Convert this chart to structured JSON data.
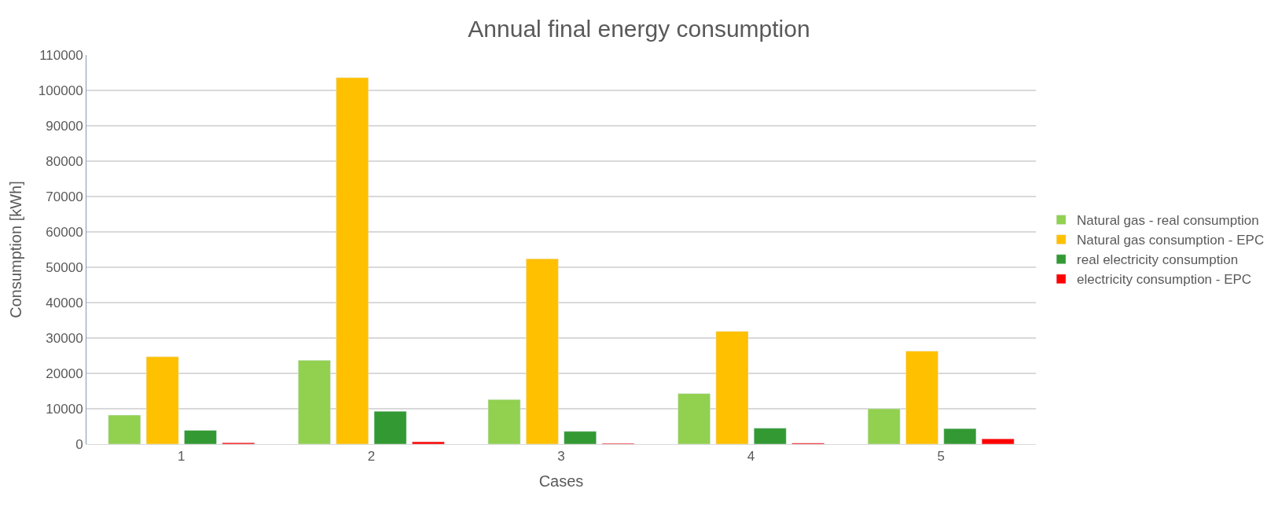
{
  "chart_data": {
    "type": "bar",
    "title": "Annual final energy consumption",
    "xlabel": "Cases",
    "ylabel": "Consumption [kWh]",
    "categories": [
      "1",
      "2",
      "3",
      "4",
      "5"
    ],
    "series": [
      {
        "name": "Natural gas - real consumption",
        "color": "#92d050",
        "values": [
          8200,
          23700,
          12600,
          14300,
          10000
        ]
      },
      {
        "name": "Natural gas consumption - EPC",
        "color": "#ffc000",
        "values": [
          24700,
          103600,
          52400,
          31900,
          26300
        ]
      },
      {
        "name": "real electricity consumption",
        "color": "#339933",
        "values": [
          3900,
          9300,
          3600,
          4500,
          4400
        ]
      },
      {
        "name": "electricity consumption - EPC",
        "color": "#ff0000",
        "values": [
          400,
          650,
          200,
          300,
          1500
        ]
      }
    ],
    "ylim": [
      0,
      110000
    ],
    "yticks": [
      0,
      10000,
      20000,
      30000,
      40000,
      50000,
      60000,
      70000,
      80000,
      90000,
      100000,
      110000
    ],
    "grid": "y",
    "legend": "right"
  }
}
